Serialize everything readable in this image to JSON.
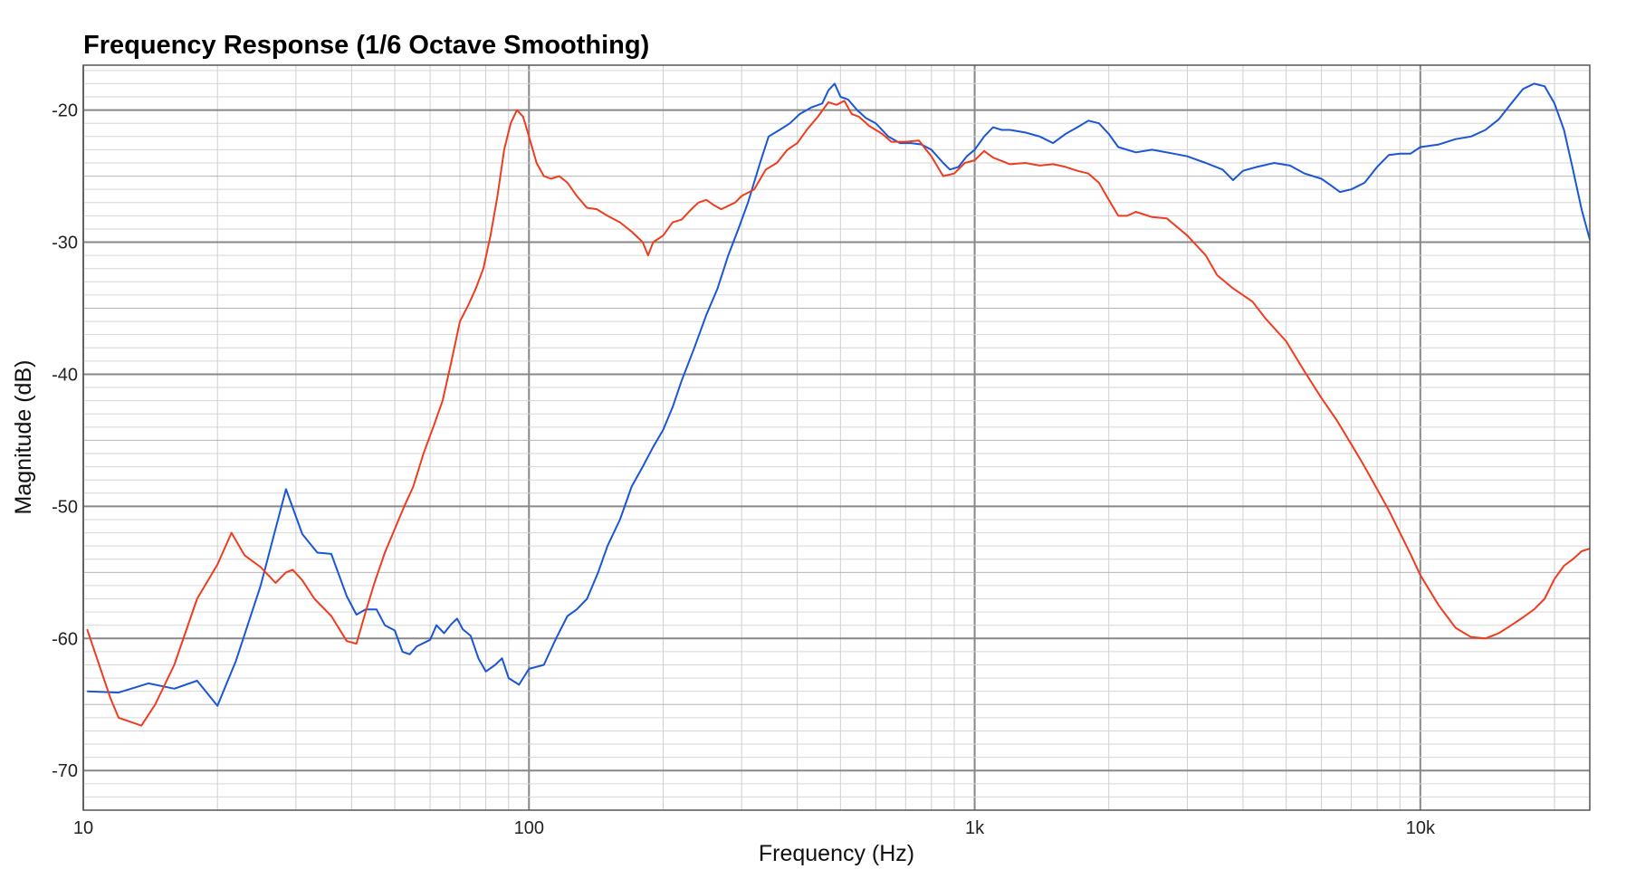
{
  "chart_data": {
    "type": "line",
    "title": "Frequency Response (1/6 Octave Smoothing)",
    "xlabel": "Frequency (Hz)",
    "ylabel": "Magnitude (dB)",
    "x_scale": "log",
    "xlim": [
      10,
      24000
    ],
    "ylim": [
      -73.0,
      -16.6
    ],
    "x_ticks": [
      {
        "value": 10,
        "label": "10"
      },
      {
        "value": 100,
        "label": "100"
      },
      {
        "value": 1000,
        "label": "1k"
      },
      {
        "value": 10000,
        "label": "10k"
      }
    ],
    "y_ticks": [
      {
        "value": -20,
        "label": "-20"
      },
      {
        "value": -30,
        "label": "-30"
      },
      {
        "value": -40,
        "label": "-40"
      },
      {
        "value": -50,
        "label": "-50"
      },
      {
        "value": -60,
        "label": "-60"
      },
      {
        "value": -70,
        "label": "-70"
      }
    ],
    "grid": true,
    "legend": "none",
    "series": [
      {
        "color": "#1a56d6",
        "points": [
          [
            10.2,
            -64.0
          ],
          [
            12.0,
            -64.1
          ],
          [
            14.0,
            -63.4
          ],
          [
            16.0,
            -63.8
          ],
          [
            18.0,
            -63.2
          ],
          [
            20.0,
            -65.1
          ],
          [
            22.0,
            -61.7
          ],
          [
            25.0,
            -56.0
          ],
          [
            28.5,
            -48.7
          ],
          [
            31.0,
            -52.1
          ],
          [
            33.5,
            -53.5
          ],
          [
            36.0,
            -53.6
          ],
          [
            39.0,
            -56.8
          ],
          [
            41.0,
            -58.2
          ],
          [
            43.0,
            -57.8
          ],
          [
            45.5,
            -57.8
          ],
          [
            47.5,
            -59.0
          ],
          [
            50.0,
            -59.4
          ],
          [
            52.0,
            -61.0
          ],
          [
            54.0,
            -61.2
          ],
          [
            56.0,
            -60.6
          ],
          [
            60.0,
            -60.1
          ],
          [
            62.0,
            -59.0
          ],
          [
            64.5,
            -59.6
          ],
          [
            67.0,
            -58.9
          ],
          [
            69.0,
            -58.5
          ],
          [
            71.0,
            -59.3
          ],
          [
            74.0,
            -59.8
          ],
          [
            77.0,
            -61.5
          ],
          [
            80.0,
            -62.5
          ],
          [
            84.0,
            -62.0
          ],
          [
            87.0,
            -61.5
          ],
          [
            90.0,
            -63.0
          ],
          [
            95.0,
            -63.5
          ],
          [
            100.0,
            -62.3
          ],
          [
            108.0,
            -62.0
          ],
          [
            115.0,
            -60.0
          ],
          [
            122.0,
            -58.3
          ],
          [
            128.0,
            -57.8
          ],
          [
            135.0,
            -57.0
          ],
          [
            143.0,
            -55.0
          ],
          [
            150.0,
            -53.0
          ],
          [
            160.0,
            -51.0
          ],
          [
            170.0,
            -48.5
          ],
          [
            180.0,
            -47.0
          ],
          [
            190.0,
            -45.5
          ],
          [
            200.0,
            -44.2
          ],
          [
            210.0,
            -42.5
          ],
          [
            220.0,
            -40.5
          ],
          [
            235.0,
            -38.0
          ],
          [
            250.0,
            -35.5
          ],
          [
            265.0,
            -33.5
          ],
          [
            280.0,
            -31.0
          ],
          [
            295.0,
            -29.0
          ],
          [
            310.0,
            -27.0
          ],
          [
            330.0,
            -24.0
          ],
          [
            345.0,
            -22.0
          ],
          [
            365.0,
            -21.5
          ],
          [
            385.0,
            -21.0
          ],
          [
            405.0,
            -20.3
          ],
          [
            430.0,
            -19.8
          ],
          [
            455.0,
            -19.5
          ],
          [
            470.0,
            -18.5
          ],
          [
            485.0,
            -18.0
          ],
          [
            500.0,
            -19.0
          ],
          [
            520.0,
            -19.2
          ],
          [
            545.0,
            -20.0
          ],
          [
            570.0,
            -20.6
          ],
          [
            600.0,
            -21.0
          ],
          [
            640.0,
            -22.0
          ],
          [
            680.0,
            -22.5
          ],
          [
            720.0,
            -22.5
          ],
          [
            760.0,
            -22.6
          ],
          [
            800.0,
            -23.0
          ],
          [
            850.0,
            -24.0
          ],
          [
            880.0,
            -24.5
          ],
          [
            920.0,
            -24.3
          ],
          [
            960.0,
            -23.5
          ],
          [
            1000.0,
            -23.0
          ],
          [
            1050.0,
            -22.0
          ],
          [
            1100.0,
            -21.3
          ],
          [
            1150.0,
            -21.5
          ],
          [
            1200.0,
            -21.5
          ],
          [
            1300.0,
            -21.7
          ],
          [
            1400.0,
            -22.0
          ],
          [
            1500.0,
            -22.5
          ],
          [
            1600.0,
            -21.8
          ],
          [
            1700.0,
            -21.3
          ],
          [
            1800.0,
            -20.8
          ],
          [
            1900.0,
            -21.0
          ],
          [
            2000.0,
            -21.8
          ],
          [
            2100.0,
            -22.8
          ],
          [
            2300.0,
            -23.2
          ],
          [
            2500.0,
            -23.0
          ],
          [
            2800.0,
            -23.3
          ],
          [
            3000.0,
            -23.5
          ],
          [
            3300.0,
            -24.0
          ],
          [
            3600.0,
            -24.5
          ],
          [
            3800.0,
            -25.3
          ],
          [
            4000.0,
            -24.6
          ],
          [
            4300.0,
            -24.3
          ],
          [
            4700.0,
            -24.0
          ],
          [
            5100.0,
            -24.2
          ],
          [
            5500.0,
            -24.8
          ],
          [
            6000.0,
            -25.2
          ],
          [
            6300.0,
            -25.7
          ],
          [
            6600.0,
            -26.2
          ],
          [
            7000.0,
            -26.0
          ],
          [
            7500.0,
            -25.5
          ],
          [
            8000.0,
            -24.3
          ],
          [
            8500.0,
            -23.4
          ],
          [
            9000.0,
            -23.3
          ],
          [
            9500.0,
            -23.3
          ],
          [
            10000.0,
            -22.8
          ],
          [
            11000.0,
            -22.6
          ],
          [
            12000.0,
            -22.2
          ],
          [
            13000.0,
            -22.0
          ],
          [
            14000.0,
            -21.5
          ],
          [
            15000.0,
            -20.7
          ],
          [
            16000.0,
            -19.5
          ],
          [
            17000.0,
            -18.4
          ],
          [
            18000.0,
            -18.0
          ],
          [
            19000.0,
            -18.2
          ],
          [
            20000.0,
            -19.5
          ],
          [
            21000.0,
            -21.5
          ],
          [
            22000.0,
            -24.5
          ],
          [
            23000.0,
            -27.5
          ],
          [
            24000.0,
            -29.8
          ]
        ]
      },
      {
        "color": "#f03c1e",
        "points": [
          [
            10.2,
            -59.3
          ],
          [
            11.5,
            -64.5
          ],
          [
            12.0,
            -66.0
          ],
          [
            13.5,
            -66.6
          ],
          [
            14.5,
            -65.0
          ],
          [
            16.0,
            -62.0
          ],
          [
            18.0,
            -57.0
          ],
          [
            20.0,
            -54.4
          ],
          [
            21.5,
            -52.0
          ],
          [
            23.0,
            -53.7
          ],
          [
            25.0,
            -54.6
          ],
          [
            27.0,
            -55.8
          ],
          [
            28.5,
            -55.0
          ],
          [
            29.5,
            -54.8
          ],
          [
            31.0,
            -55.6
          ],
          [
            33.0,
            -57.0
          ],
          [
            36.0,
            -58.3
          ],
          [
            39.0,
            -60.2
          ],
          [
            41.0,
            -60.4
          ],
          [
            43.0,
            -58.0
          ],
          [
            45.0,
            -55.8
          ],
          [
            47.5,
            -53.5
          ],
          [
            50.0,
            -51.7
          ],
          [
            52.5,
            -50.0
          ],
          [
            55.0,
            -48.5
          ],
          [
            58.0,
            -46.0
          ],
          [
            61.0,
            -44.0
          ],
          [
            64.0,
            -42.0
          ],
          [
            67.0,
            -39.0
          ],
          [
            70.0,
            -36.0
          ],
          [
            73.0,
            -34.8
          ],
          [
            76.0,
            -33.5
          ],
          [
            79.0,
            -32.0
          ],
          [
            82.0,
            -29.5
          ],
          [
            85.0,
            -26.5
          ],
          [
            88.0,
            -23.0
          ],
          [
            91.0,
            -21.0
          ],
          [
            94.0,
            -20.0
          ],
          [
            97.0,
            -20.5
          ],
          [
            100.0,
            -22.0
          ],
          [
            104.0,
            -24.0
          ],
          [
            108.0,
            -25.0
          ],
          [
            112.0,
            -25.2
          ],
          [
            117.0,
            -25.0
          ],
          [
            122.0,
            -25.5
          ],
          [
            128.0,
            -26.5
          ],
          [
            135.0,
            -27.4
          ],
          [
            142.0,
            -27.5
          ],
          [
            150.0,
            -28.0
          ],
          [
            160.0,
            -28.5
          ],
          [
            170.0,
            -29.2
          ],
          [
            180.0,
            -30.0
          ],
          [
            185.0,
            -31.0
          ],
          [
            190.0,
            -30.0
          ],
          [
            200.0,
            -29.5
          ],
          [
            210.0,
            -28.5
          ],
          [
            220.0,
            -28.3
          ],
          [
            230.0,
            -27.6
          ],
          [
            240.0,
            -27.0
          ],
          [
            250.0,
            -26.8
          ],
          [
            260.0,
            -27.2
          ],
          [
            270.0,
            -27.5
          ],
          [
            290.0,
            -27.0
          ],
          [
            300.0,
            -26.5
          ],
          [
            320.0,
            -26.0
          ],
          [
            340.0,
            -24.5
          ],
          [
            360.0,
            -24.0
          ],
          [
            380.0,
            -23.0
          ],
          [
            400.0,
            -22.5
          ],
          [
            420.0,
            -21.5
          ],
          [
            445.0,
            -20.5
          ],
          [
            470.0,
            -19.4
          ],
          [
            490.0,
            -19.6
          ],
          [
            510.0,
            -19.3
          ],
          [
            530.0,
            -20.3
          ],
          [
            550.0,
            -20.5
          ],
          [
            580.0,
            -21.2
          ],
          [
            620.0,
            -21.8
          ],
          [
            650.0,
            -22.4
          ],
          [
            700.0,
            -22.4
          ],
          [
            750.0,
            -22.3
          ],
          [
            800.0,
            -23.5
          ],
          [
            850.0,
            -25.0
          ],
          [
            900.0,
            -24.8
          ],
          [
            950.0,
            -24.0
          ],
          [
            1000.0,
            -23.8
          ],
          [
            1050.0,
            -23.1
          ],
          [
            1100.0,
            -23.6
          ],
          [
            1200.0,
            -24.1
          ],
          [
            1300.0,
            -24.0
          ],
          [
            1400.0,
            -24.2
          ],
          [
            1500.0,
            -24.1
          ],
          [
            1600.0,
            -24.3
          ],
          [
            1700.0,
            -24.6
          ],
          [
            1800.0,
            -24.8
          ],
          [
            1900.0,
            -25.5
          ],
          [
            2000.0,
            -26.8
          ],
          [
            2100.0,
            -28.0
          ],
          [
            2200.0,
            -28.0
          ],
          [
            2300.0,
            -27.7
          ],
          [
            2500.0,
            -28.1
          ],
          [
            2700.0,
            -28.2
          ],
          [
            3000.0,
            -29.5
          ],
          [
            3300.0,
            -31.0
          ],
          [
            3500.0,
            -32.5
          ],
          [
            3800.0,
            -33.5
          ],
          [
            4200.0,
            -34.5
          ],
          [
            4500.0,
            -35.8
          ],
          [
            5000.0,
            -37.5
          ],
          [
            5500.0,
            -39.8
          ],
          [
            6000.0,
            -41.8
          ],
          [
            6500.0,
            -43.5
          ],
          [
            7000.0,
            -45.3
          ],
          [
            7500.0,
            -47.0
          ],
          [
            8000.0,
            -48.7
          ],
          [
            8500.0,
            -50.3
          ],
          [
            9000.0,
            -52.0
          ],
          [
            9500.0,
            -53.6
          ],
          [
            10000.0,
            -55.2
          ],
          [
            11000.0,
            -57.5
          ],
          [
            12000.0,
            -59.2
          ],
          [
            13000.0,
            -59.9
          ],
          [
            14000.0,
            -60.0
          ],
          [
            15000.0,
            -59.6
          ],
          [
            16000.0,
            -59.0
          ],
          [
            17000.0,
            -58.4
          ],
          [
            18000.0,
            -57.8
          ],
          [
            19000.0,
            -57.0
          ],
          [
            20000.0,
            -55.5
          ],
          [
            21000.0,
            -54.5
          ],
          [
            22000.0,
            -54.0
          ],
          [
            23000.0,
            -53.4
          ],
          [
            24000.0,
            -53.2
          ]
        ]
      }
    ]
  }
}
